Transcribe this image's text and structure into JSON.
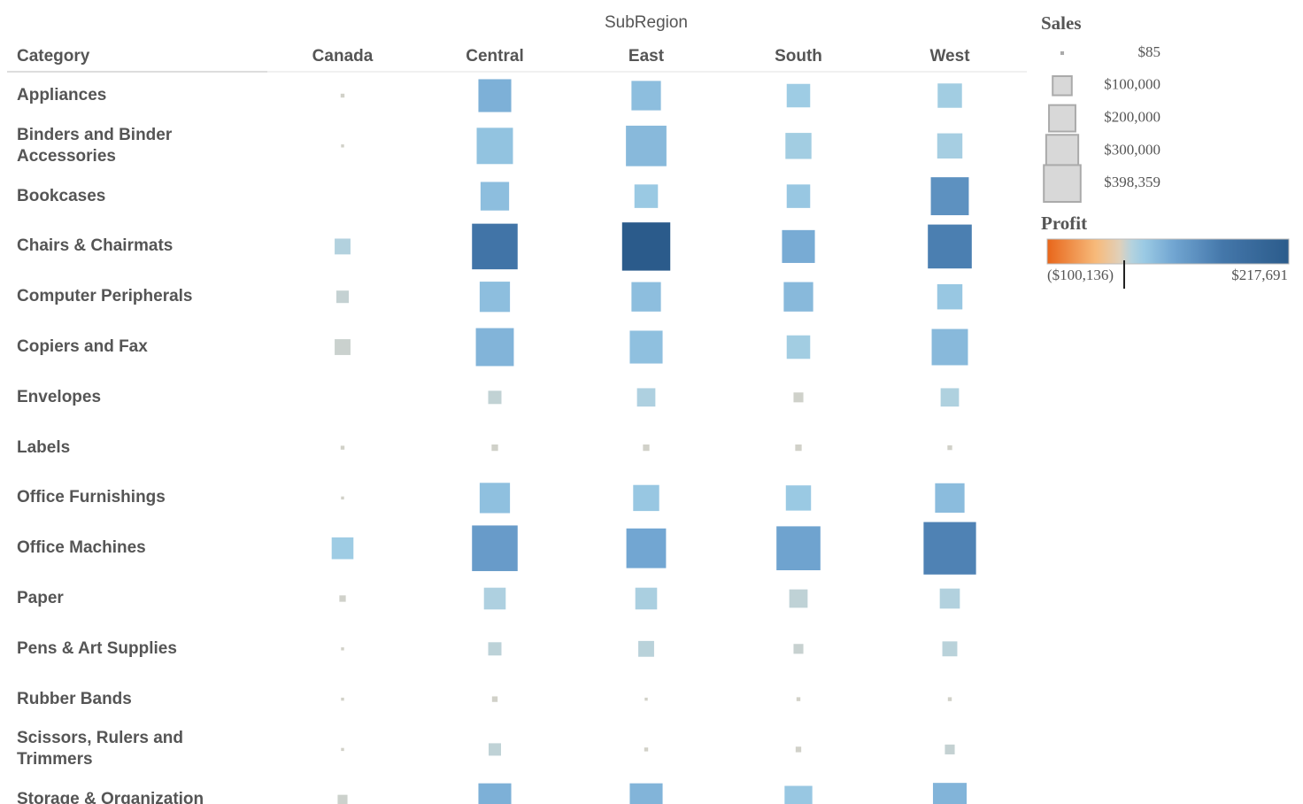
{
  "chart_data": {
    "type": "square",
    "column_header": "SubRegion",
    "row_header": "Category",
    "categories": [
      "Appliances",
      "Binders and Binder Accessories",
      "Bookcases",
      "Chairs & Chairmats",
      "Computer Peripherals",
      "Copiers and Fax",
      "Envelopes",
      "Labels",
      "Office Furnishings",
      "Office Machines",
      "Paper",
      "Pens & Art Supplies",
      "Rubber Bands",
      "Scissors, Rulers and Trimmers",
      "Storage & Organization"
    ],
    "series": [
      {
        "name": "Canada",
        "sales": [
          1000,
          450,
          null,
          32000,
          18700,
          32000,
          null,
          1000,
          450,
          63700,
          3980,
          450,
          450,
          450,
          11060
        ],
        "profit": [
          500,
          200,
          null,
          12000,
          5000,
          3000,
          null,
          200,
          100,
          25000,
          800,
          100,
          50,
          50,
          2000
        ]
      },
      {
        "name": "Central",
        "sales": [
          151400,
          185900,
          113000,
          299000,
          127900,
          204500,
          21700,
          3980,
          127900,
          299000,
          63700,
          21700,
          2765,
          18700,
          151400
        ],
        "profit": [
          55000,
          35000,
          40000,
          140000,
          40000,
          50000,
          6000,
          600,
          38000,
          80000,
          15000,
          8000,
          300,
          7000,
          55000
        ]
      },
      {
        "name": "East",
        "sales": [
          120400,
          234000,
          74800,
          334600,
          120400,
          151400,
          44200,
          3980,
          93000,
          224000,
          63700,
          32000,
          450,
          1000,
          151400
        ],
        "profit": [
          40000,
          45000,
          28000,
          217691,
          40000,
          38000,
          15000,
          500,
          30000,
          65000,
          17000,
          9000,
          100,
          100,
          50000
        ]
      },
      {
        "name": "South",
        "sales": [
          74800,
          93000,
          74800,
          151400,
          120400,
          74800,
          11060,
          3980,
          86700,
          276500,
          44200,
          11060,
          1000,
          2765,
          106300
        ],
        "profit": [
          25000,
          22000,
          30000,
          60000,
          45000,
          22000,
          1000,
          400,
          28000,
          70000,
          7000,
          4000,
          150,
          300,
          30000
        ]
      },
      {
        "name": "West",
        "sales": [
          80600,
          86700,
          204500,
          276500,
          86700,
          185900,
          44200,
          1770,
          120400,
          398359,
          53500,
          28300,
          1000,
          11060,
          159700
        ],
        "profit": [
          22000,
          20000,
          95000,
          120000,
          30000,
          45000,
          14000,
          300,
          42000,
          115000,
          12000,
          9000,
          200,
          5000,
          50000
        ]
      }
    ],
    "size_legend": {
      "title": "Sales",
      "values": [
        85,
        100000,
        200000,
        300000,
        398359
      ],
      "value_labels": [
        "$85",
        "$100,000",
        "$200,000",
        "$300,000",
        "$398,359"
      ]
    },
    "color_legend": {
      "title": "Profit",
      "clim": [
        -100136,
        217691
      ],
      "clim_labels": [
        "($100,136)",
        "$217,691"
      ]
    }
  }
}
